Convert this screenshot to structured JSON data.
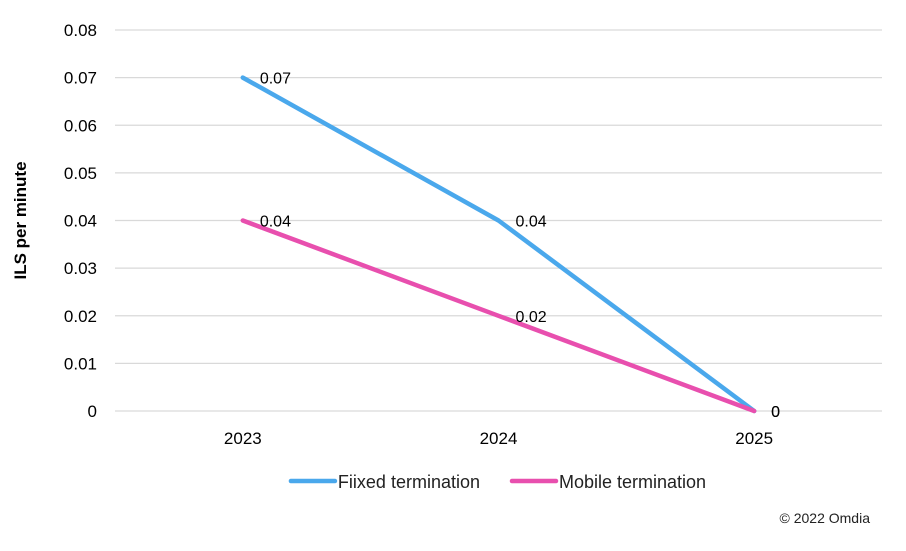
{
  "chart_data": {
    "type": "line",
    "categories": [
      "2023",
      "2024",
      "2025"
    ],
    "series": [
      {
        "name": "Fiixed termination",
        "values": [
          0.07,
          0.04,
          0
        ],
        "labels": [
          "0.07",
          "0.04",
          "0"
        ],
        "color": "#4aa8ec"
      },
      {
        "name": "Mobile termination",
        "values": [
          0.04,
          0.02,
          0
        ],
        "labels": [
          "0.04",
          "0.02",
          "0"
        ],
        "color": "#e84fae"
      }
    ],
    "ylabel": "ILS per minute",
    "xlabel": "",
    "ylim": [
      0,
      0.08
    ],
    "yticks": [
      "0",
      "0.01",
      "0.02",
      "0.03",
      "0.04",
      "0.05",
      "0.06",
      "0.07",
      "0.08"
    ],
    "grid": true,
    "legend_position": "bottom"
  },
  "credit": "© 2022 Omdia",
  "gridline_color": "#d9d9d9"
}
